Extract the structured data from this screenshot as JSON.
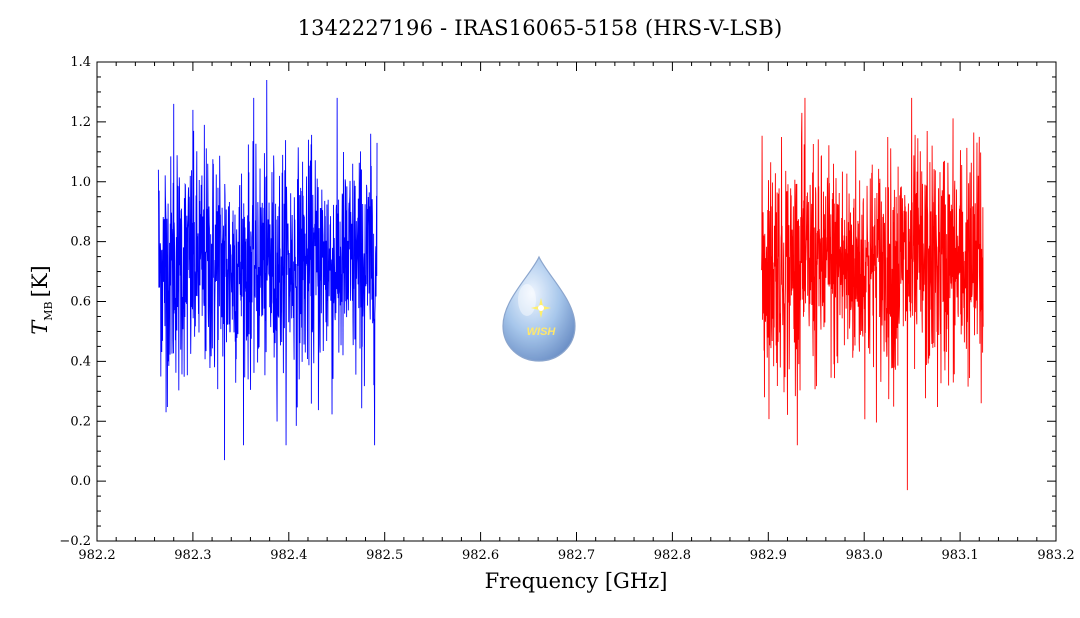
{
  "chart_data": {
    "type": "line",
    "title": "1342227196 - IRAS16065-5158 (HRS-V-LSB)",
    "xlabel": "Frequency [GHz]",
    "ylabel": {
      "symbol": "T",
      "subscript": "MB",
      "unit": "[K]"
    },
    "xlim": [
      982.2,
      983.2
    ],
    "ylim": [
      -0.2,
      1.4
    ],
    "x_ticks": [
      "982.2",
      "982.3",
      "982.4",
      "982.5",
      "982.6",
      "982.7",
      "982.8",
      "982.9",
      "983.0",
      "983.1",
      "983.2"
    ],
    "y_ticks": [
      "−0.2",
      "0.0",
      "0.2",
      "0.4",
      "0.6",
      "0.8",
      "1.0",
      "1.2",
      "1.4"
    ],
    "grid": false,
    "legend": "none",
    "logo": {
      "text": "WISH",
      "placement": "center"
    },
    "series": [
      {
        "color": "#0000ff",
        "x_start": 982.264,
        "x_end": 982.492,
        "mean": 0.72,
        "noise_std": 0.18,
        "anchor_points": [
          {
            "x": 982.264,
            "y": 1.04
          },
          {
            "x": 982.272,
            "y": 0.23
          },
          {
            "x": 982.28,
            "y": 1.26
          },
          {
            "x": 982.3,
            "y": 1.24
          },
          {
            "x": 982.333,
            "y": 0.07
          },
          {
            "x": 982.377,
            "y": 1.34
          },
          {
            "x": 982.492,
            "y": 1.13
          }
        ]
      },
      {
        "color": "#ff0000",
        "x_start": 982.893,
        "x_end": 983.124,
        "mean": 0.72,
        "noise_std": 0.18,
        "anchor_points": [
          {
            "x": 982.896,
            "y": 0.28
          },
          {
            "x": 982.935,
            "y": 1.23
          },
          {
            "x": 983.045,
            "y": -0.03
          },
          {
            "x": 983.12,
            "y": 1.15
          },
          {
            "x": 983.122,
            "y": 0.26
          }
        ]
      }
    ]
  },
  "colors": {
    "axis": "#000000",
    "background": "#ffffff"
  }
}
